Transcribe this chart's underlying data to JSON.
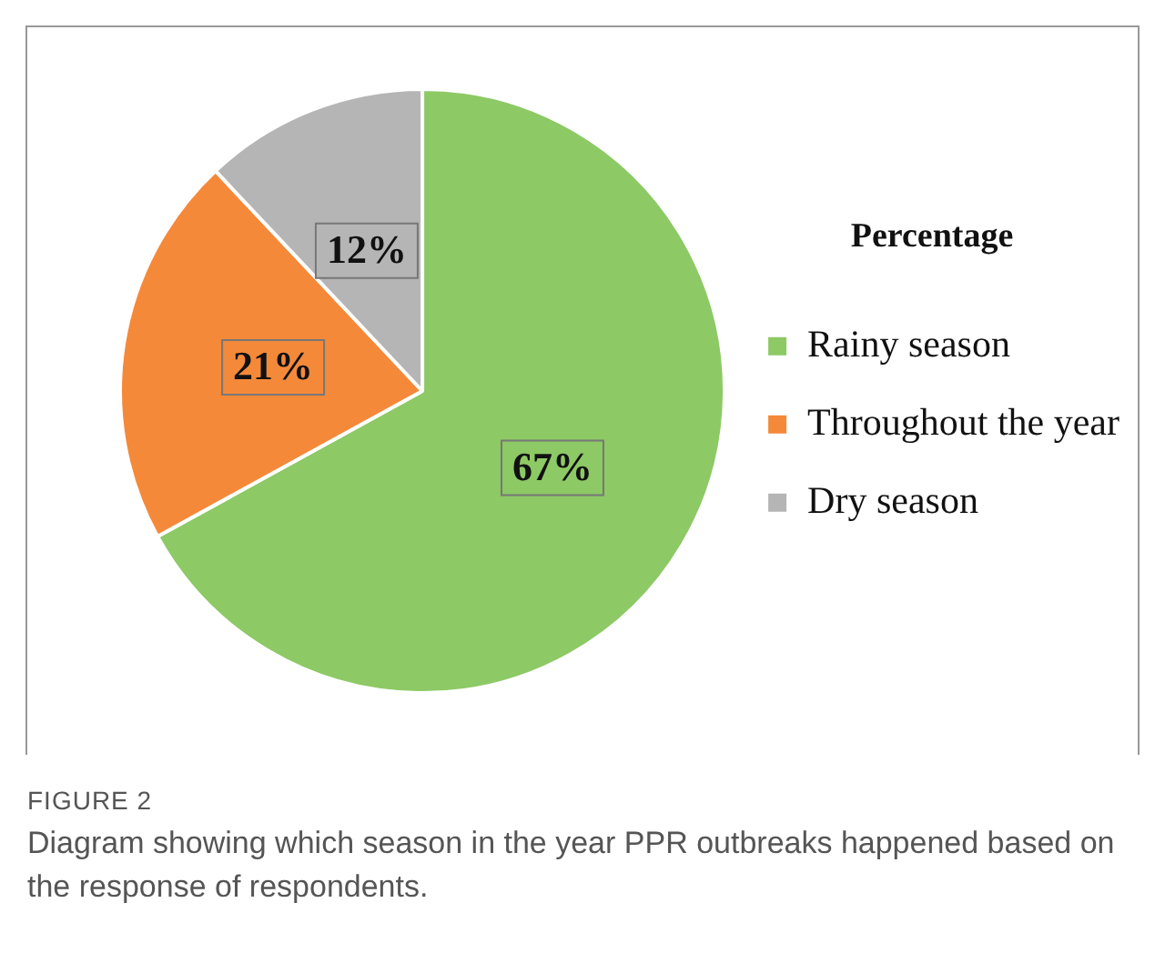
{
  "chart_data": {
    "type": "pie",
    "legend_title": "Percentage",
    "categories": [
      "Rainy season",
      "Throughout the year",
      "Dry season"
    ],
    "values": [
      67,
      21,
      12
    ],
    "colors": [
      "#8dc965",
      "#f5893a",
      "#b5b5b5"
    ],
    "value_labels": [
      "67%",
      "21%",
      "12%"
    ],
    "legend": "right",
    "annotations": [
      "FIGURE 2",
      "Diagram showing which season in the year PPR outbreaks happened based on the response of respondents."
    ]
  }
}
